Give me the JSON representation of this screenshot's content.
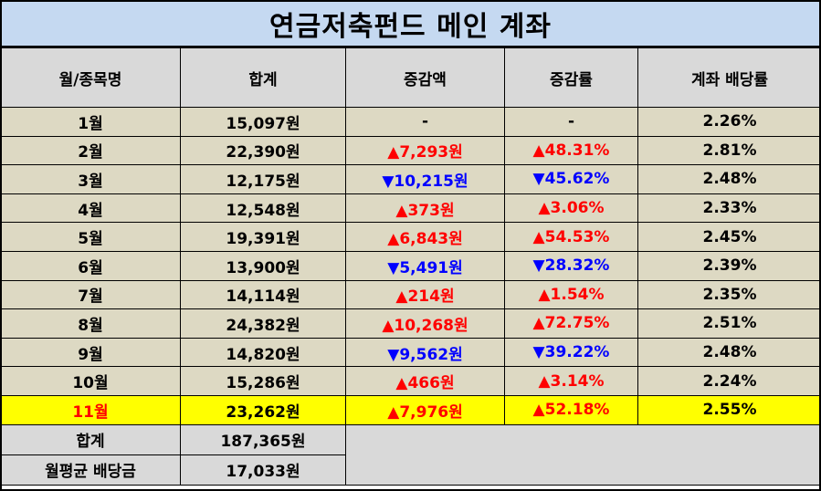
{
  "title": "연금저축펀드 메인 계좌",
  "columns": [
    "월/종목명",
    "합계",
    "증감액",
    "증감률",
    "계좌 배당률"
  ],
  "rows": [
    {
      "month": "1월",
      "total": "15,097원",
      "change_amount": "-",
      "change_rate": "-",
      "yield": "2.26%",
      "direction": "none"
    },
    {
      "month": "2월",
      "total": "22,390원",
      "change_amount": "▲7,293원",
      "change_rate": "▲48.31%",
      "yield": "2.81%",
      "direction": "up"
    },
    {
      "month": "3월",
      "total": "12,175원",
      "change_amount": "▼10,215원",
      "change_rate": "▼45.62%",
      "yield": "2.48%",
      "direction": "down"
    },
    {
      "month": "4월",
      "total": "12,548원",
      "change_amount": "▲373원",
      "change_rate": "▲3.06%",
      "yield": "2.33%",
      "direction": "up"
    },
    {
      "month": "5월",
      "total": "19,391원",
      "change_amount": "▲6,843원",
      "change_rate": "▲54.53%",
      "yield": "2.45%",
      "direction": "up"
    },
    {
      "month": "6월",
      "total": "13,900원",
      "change_amount": "▼5,491원",
      "change_rate": "▼28.32%",
      "yield": "2.39%",
      "direction": "down"
    },
    {
      "month": "7월",
      "total": "14,114원",
      "change_amount": "▲214원",
      "change_rate": "▲1.54%",
      "yield": "2.35%",
      "direction": "up"
    },
    {
      "month": "8월",
      "total": "24,382원",
      "change_amount": "▲10,268원",
      "change_rate": "▲72.75%",
      "yield": "2.51%",
      "direction": "up"
    },
    {
      "month": "9월",
      "total": "14,820원",
      "change_amount": "▼9,562원",
      "change_rate": "▼39.22%",
      "yield": "2.48%",
      "direction": "down"
    },
    {
      "month": "10월",
      "total": "15,286원",
      "change_amount": "▲466원",
      "change_rate": "▲3.14%",
      "yield": "2.24%",
      "direction": "up"
    },
    {
      "month": "11월",
      "total": "23,262원",
      "change_amount": "▲7,976원",
      "change_rate": "▲52.18%",
      "yield": "2.55%",
      "direction": "up",
      "highlight": true
    }
  ],
  "summary": {
    "total_label": "합계",
    "total_value": "187,365원",
    "avg_label": "월평균 배당금",
    "avg_value": "17,033원"
  },
  "colors": {
    "title_bg": "#c5d9f1",
    "header_bg": "#d9d9d9",
    "row_bg": "#ddd9c3",
    "highlight_bg": "#ffff00",
    "up": "#ff0000",
    "down": "#0000ff"
  }
}
